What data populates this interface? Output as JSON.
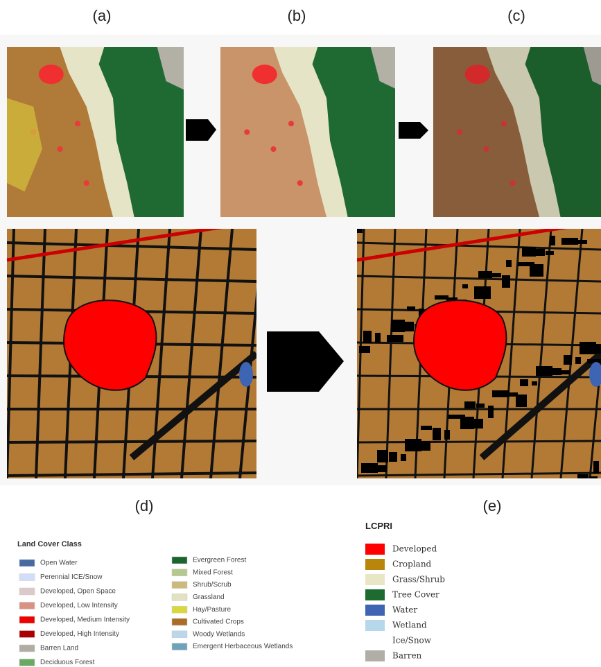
{
  "panels": [
    {
      "label": "(a)"
    },
    {
      "label": "(b)"
    },
    {
      "label": "(c)"
    },
    {
      "label": "(d)"
    },
    {
      "label": "(e)"
    }
  ],
  "legend_land_cover": {
    "title": "Land Cover Class",
    "items": [
      {
        "label": "Open Water",
        "color": "#476ba1"
      },
      {
        "label": "Perennial ICE/Snow",
        "color": "#d1ddf9"
      },
      {
        "label": "Developed, Open Space",
        "color": "#ddc9c9"
      },
      {
        "label": "Developed, Low Intensity",
        "color": "#d89382"
      },
      {
        "label": "Developed, Medium Intensity",
        "color": "#ed0000"
      },
      {
        "label": "Developed, High Intensity",
        "color": "#aa0000"
      },
      {
        "label": "Barren Land",
        "color": "#b2ada3"
      },
      {
        "label": "Deciduous Forest",
        "color": "#68aa63"
      },
      {
        "label": "Evergreen Forest",
        "color": "#1c6330"
      },
      {
        "label": "Mixed Forest",
        "color": "#b5c98e"
      },
      {
        "label": "Shrub/Scrub",
        "color": "#ccba7c"
      },
      {
        "label": "Grassland",
        "color": "#e2e2c1"
      },
      {
        "label": "Hay/Pasture",
        "color": "#dbd83d"
      },
      {
        "label": "Cultivated Crops",
        "color": "#ab6c28"
      },
      {
        "label": "Woody Wetlands",
        "color": "#bad8ea"
      },
      {
        "label": "Emergent Herbaceous Wetlands",
        "color": "#70a3ba"
      }
    ]
  },
  "legend_lcpri": {
    "title": "LCPRI",
    "items": [
      {
        "label": "Developed",
        "color": "#ff0000"
      },
      {
        "label": "Cropland",
        "color": "#b8860b"
      },
      {
        "label": "Grass/Shrub",
        "color": "#e8e6c4"
      },
      {
        "label": "Tree Cover",
        "color": "#1e6b30"
      },
      {
        "label": "Water",
        "color": "#3e64b4"
      },
      {
        "label": "Wetland",
        "color": "#b7d7ea"
      },
      {
        "label": "Ice/Snow",
        "color": "#ffffff"
      },
      {
        "label": "Barren",
        "color": "#b0aea6"
      }
    ]
  }
}
